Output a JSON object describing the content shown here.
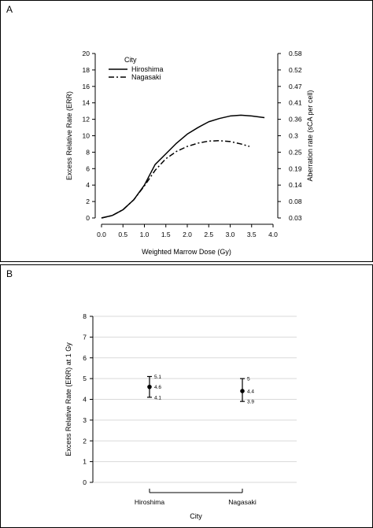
{
  "chart_data": [
    {
      "panel": "A",
      "type": "line",
      "xlabel": "Weighted Marrow Dose (Gy)",
      "ylabel": "Excess Relative Rate (ERR)",
      "y2label": "Aberration rate (sCA per cell)",
      "xlim": [
        0,
        4.0
      ],
      "ylim": [
        0,
        20
      ],
      "x_ticks": [
        "0.0",
        "0.5",
        "1.0",
        "1.5",
        "2.0",
        "2.5",
        "3.0",
        "3.5",
        "4.0"
      ],
      "y_ticks": [
        "0",
        "2",
        "4",
        "6",
        "8",
        "10",
        "12",
        "14",
        "16",
        "18",
        "20"
      ],
      "y2_ticks": [
        "0.03",
        "0.08",
        "0.14",
        "0.19",
        "0.25",
        "0.3",
        "0.36",
        "0.41",
        "0.47",
        "0.52",
        "0.58"
      ],
      "legend_title": "City",
      "legend_position": "top-left",
      "grid": false,
      "series": [
        {
          "name": "Hiroshima",
          "style": "solid",
          "x": [
            0,
            0.25,
            0.5,
            0.75,
            1.0,
            1.25,
            1.5,
            1.75,
            2.0,
            2.25,
            2.5,
            2.75,
            3.0,
            3.25,
            3.5,
            3.8
          ],
          "y": [
            0,
            0.3,
            1.0,
            2.2,
            4.0,
            6.5,
            7.8,
            9.1,
            10.2,
            11.0,
            11.7,
            12.1,
            12.4,
            12.5,
            12.4,
            12.2
          ]
        },
        {
          "name": "Nagasaki",
          "style": "dash-dot",
          "x": [
            0,
            0.25,
            0.5,
            0.75,
            1.0,
            1.25,
            1.5,
            1.75,
            2.0,
            2.25,
            2.5,
            2.75,
            3.0,
            3.25,
            3.45
          ],
          "y": [
            0,
            0.3,
            1.0,
            2.2,
            3.9,
            5.8,
            7.2,
            8.1,
            8.7,
            9.1,
            9.35,
            9.4,
            9.3,
            9.0,
            8.7
          ]
        }
      ]
    },
    {
      "panel": "B",
      "type": "scatter",
      "xlabel": "City",
      "ylabel": "Excess Relative Rate (ERR) at 1 Gy",
      "ylim": [
        0,
        8
      ],
      "y_ticks": [
        "0",
        "1",
        "2",
        "3",
        "4",
        "5",
        "6",
        "7",
        "8"
      ],
      "grid": true,
      "categories": [
        "Hiroshima",
        "Nagasaki"
      ],
      "points": [
        {
          "city": "Hiroshima",
          "value": 4.6,
          "lower": 4.1,
          "upper": 5.1,
          "value_label": "4.6",
          "lower_label": "4.1",
          "upper_label": "5.1"
        },
        {
          "city": "Nagasaki",
          "value": 4.4,
          "lower": 3.9,
          "upper": 5.0,
          "value_label": "4.4",
          "lower_label": "3.9",
          "upper_label": "5"
        }
      ]
    }
  ],
  "panels": {
    "a_label": "A",
    "b_label": "B"
  },
  "colors": {
    "ink": "#000000",
    "grid": "#d9d9d9",
    "background": "#ffffff"
  }
}
